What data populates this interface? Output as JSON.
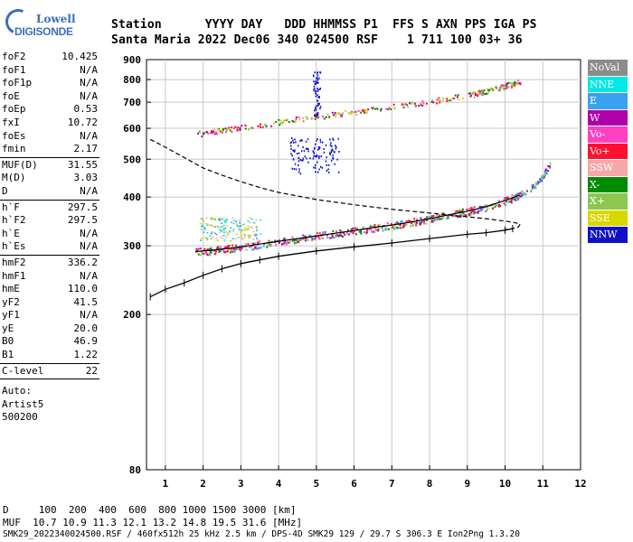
{
  "logo": {
    "line1": "Lowell",
    "line2": "DIGISONDE"
  },
  "header": {
    "line1": "Station      YYYY DAY   DDD HHMMSS P1  FFS S AXN PPS IGA PS",
    "line2": "Santa Maria 2022 Dec06 340 024500 RSF    1 711 100 03+ 36"
  },
  "params": [
    {
      "group": [
        {
          "k": "foF2",
          "v": "10.425"
        },
        {
          "k": "foF1",
          "v": "N/A"
        },
        {
          "k": "foF1p",
          "v": "N/A"
        },
        {
          "k": "foE",
          "v": "N/A"
        },
        {
          "k": "foEp",
          "v": "0.53"
        },
        {
          "k": "fxI",
          "v": "10.72"
        },
        {
          "k": "foEs",
          "v": "N/A"
        },
        {
          "k": "fmin",
          "v": "2.17"
        }
      ]
    },
    {
      "group": [
        {
          "k": "MUF(D)",
          "v": "31.55"
        },
        {
          "k": "M(D)",
          "v": "3.03"
        },
        {
          "k": "D",
          "v": "N/A"
        }
      ]
    },
    {
      "group": [
        {
          "k": "h`F",
          "v": "297.5"
        },
        {
          "k": "h`F2",
          "v": "297.5"
        },
        {
          "k": "h`E",
          "v": "N/A"
        },
        {
          "k": "h`Es",
          "v": "N/A"
        }
      ]
    },
    {
      "group": [
        {
          "k": "hmF2",
          "v": "336.2"
        },
        {
          "k": "hmF1",
          "v": "N/A"
        },
        {
          "k": "hmE",
          "v": "110.0"
        },
        {
          "k": "yF2",
          "v": "41.5"
        },
        {
          "k": "yF1",
          "v": "N/A"
        },
        {
          "k": "yE",
          "v": "20.0"
        },
        {
          "k": "B0",
          "v": "46.9"
        },
        {
          "k": "B1",
          "v": "1.22"
        }
      ]
    },
    {
      "group": [
        {
          "k": "C-level",
          "v": "22"
        }
      ]
    }
  ],
  "autoscale": [
    "Auto:",
    "Artist5",
    "500200"
  ],
  "legend": [
    {
      "label": "NoVal",
      "color": "#8c8c8c"
    },
    {
      "label": "NNE",
      "color": "#00e8e8"
    },
    {
      "label": "E",
      "color": "#3aa0f0"
    },
    {
      "label": "W",
      "color": "#b000a8"
    },
    {
      "label": "Vo-",
      "color": "#ff40c0"
    },
    {
      "label": "Vo+",
      "color": "#ff1030"
    },
    {
      "label": "SSW",
      "color": "#f4a8a8"
    },
    {
      "label": "X-",
      "color": "#008a00"
    },
    {
      "label": "X+",
      "color": "#8cc850"
    },
    {
      "label": "SSE",
      "color": "#d8d800"
    },
    {
      "label": "NNW",
      "color": "#1010c8"
    }
  ],
  "footer": {
    "line1": "D     100  200  400  600  800 1000 1500 3000 [km]",
    "line2": "MUF  10.7 10.9 11.3 12.1 13.2 14.8 19.5 31.6 [MHz]",
    "line3": "SMK29_2022340024500.RSF / 460fx512h 25 kHz 2.5 km / DPS-4D SMK29 129 / 29.7 S 306.3 E Ion2Png 1.3.20"
  },
  "chart_data": {
    "type": "scatter",
    "xlim": [
      0.5,
      12
    ],
    "ylim": [
      80,
      900
    ],
    "y_scale": "log",
    "xticks": [
      1,
      2,
      3,
      4,
      5,
      6,
      7,
      8,
      9,
      10,
      11,
      12
    ],
    "yticks": [
      80,
      200,
      300,
      400,
      500,
      600,
      700,
      800,
      900
    ],
    "grid": true,
    "traces": {
      "o_trace_F2": {
        "x": [
          1.8,
          2.2,
          2.6,
          3.0,
          3.5,
          4.0,
          4.5,
          5.0,
          5.5,
          6.0,
          6.5,
          7.0,
          7.5,
          8.0,
          8.5,
          9.0,
          9.5,
          10.0,
          10.4
        ],
        "y": [
          290,
          292,
          295,
          298,
          303,
          308,
          313,
          318,
          323,
          328,
          334,
          339,
          345,
          352,
          360,
          368,
          378,
          392,
          405
        ]
      },
      "x_trace_F2": {
        "x": [
          10.2,
          10.5,
          10.8,
          11.0,
          11.2
        ],
        "y": [
          400,
          412,
          430,
          455,
          490
        ]
      },
      "second_hop": {
        "x": [
          1.8,
          2.5,
          3.0,
          4.0,
          5.0,
          6.0,
          7.0,
          8.0,
          9.0,
          9.5,
          10.0,
          10.4
        ],
        "y": [
          582,
          595,
          603,
          625,
          645,
          662,
          682,
          705,
          730,
          750,
          772,
          790
        ]
      },
      "true_height_profile": {
        "x": [
          0.6,
          1.0,
          1.5,
          2.0,
          2.5,
          3.0,
          3.5,
          4.0,
          5.0,
          6.0,
          7.0,
          8.0,
          9.0,
          9.5,
          10.0,
          10.2,
          10.4,
          10.35,
          10.2,
          10.0
        ],
        "y": [
          562,
          537,
          505,
          475,
          455,
          438,
          423,
          411,
          394,
          382,
          372,
          364,
          356,
          352,
          347,
          345,
          341,
          335,
          332,
          330
        ]
      },
      "virtual_height_fit": {
        "x": [
          0.6,
          1.0,
          1.5,
          2.0,
          2.5,
          3.0,
          3.5,
          4.0,
          5.0,
          6.0,
          7.0,
          8.0,
          9.0,
          9.5,
          10.0,
          10.2
        ],
        "y": [
          222,
          232,
          241,
          252,
          262,
          270,
          276,
          282,
          291,
          298,
          305,
          313,
          321,
          324,
          329,
          332
        ]
      }
    }
  }
}
